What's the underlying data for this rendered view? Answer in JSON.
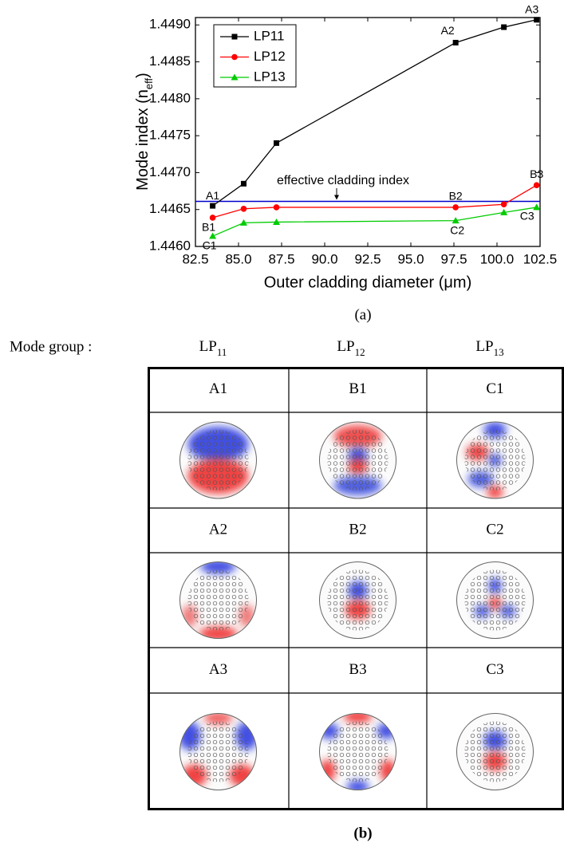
{
  "chart_data": {
    "type": "line",
    "x_label": "Outer cladding diameter (μm)",
    "y_label": {
      "text": "Mode index (n",
      "sub": "eff",
      "end": ")"
    },
    "xlim": [
      82.5,
      102.5
    ],
    "xticks": [
      82.5,
      {
        "value": 85,
        "label": "85.0"
      },
      87.5,
      {
        "value": 90,
        "label": "90.0"
      },
      92.5,
      {
        "value": 95,
        "label": "95.0"
      },
      97.5,
      {
        "value": 100,
        "label": "100.0"
      },
      102.5
    ],
    "ylim": [
      1.446,
      1.4491
    ],
    "yticks": [
      {
        "value": 1.446,
        "label": "1.4460"
      },
      1.4465,
      {
        "value": 1.447,
        "label": "1.4470"
      },
      1.4475,
      {
        "value": 1.448,
        "label": "1.4480"
      },
      1.4485,
      {
        "value": 1.449,
        "label": "1.4490"
      }
    ],
    "x": [
      83.5,
      85.3,
      87.2,
      97.6,
      100.4,
      102.3
    ],
    "series": [
      {
        "name": "LP11",
        "color": "#000000",
        "marker": "square",
        "values": [
          1.44655,
          1.44685,
          1.4474,
          1.44876,
          1.44897,
          1.44907
        ],
        "point_labels": [
          "A1",
          null,
          null,
          "A2",
          null,
          "A3"
        ]
      },
      {
        "name": "LP12",
        "color": "#ff0000",
        "marker": "circle",
        "values": [
          1.44639,
          1.44651,
          1.44653,
          1.44653,
          1.44657,
          1.44683
        ],
        "point_labels": [
          "B1",
          null,
          null,
          "B2",
          null,
          "B3"
        ]
      },
      {
        "name": "LP13",
        "color": "#00cc00",
        "marker": "triangle",
        "values": [
          1.44614,
          1.44632,
          1.44633,
          1.44635,
          1.44646,
          1.44653
        ],
        "point_labels": [
          "C1",
          null,
          null,
          "C2",
          null,
          "C3"
        ]
      }
    ],
    "reference_line": {
      "value": 1.44661,
      "label": "effective cladding index",
      "color": "#0000cc"
    },
    "legend": "upper left"
  },
  "caption_a": "(a)",
  "mode_group": "Mode group :",
  "groups": [
    {
      "base": "LP",
      "sub": "11"
    },
    {
      "base": "LP",
      "sub": "12"
    },
    {
      "base": "LP",
      "sub": "13"
    }
  ],
  "table": {
    "cells": [
      [
        "A1",
        "B1",
        "C1"
      ],
      [
        "A2",
        "B2",
        "C2"
      ],
      [
        "A3",
        "B3",
        "C3"
      ]
    ]
  },
  "caption_b": "(b)"
}
